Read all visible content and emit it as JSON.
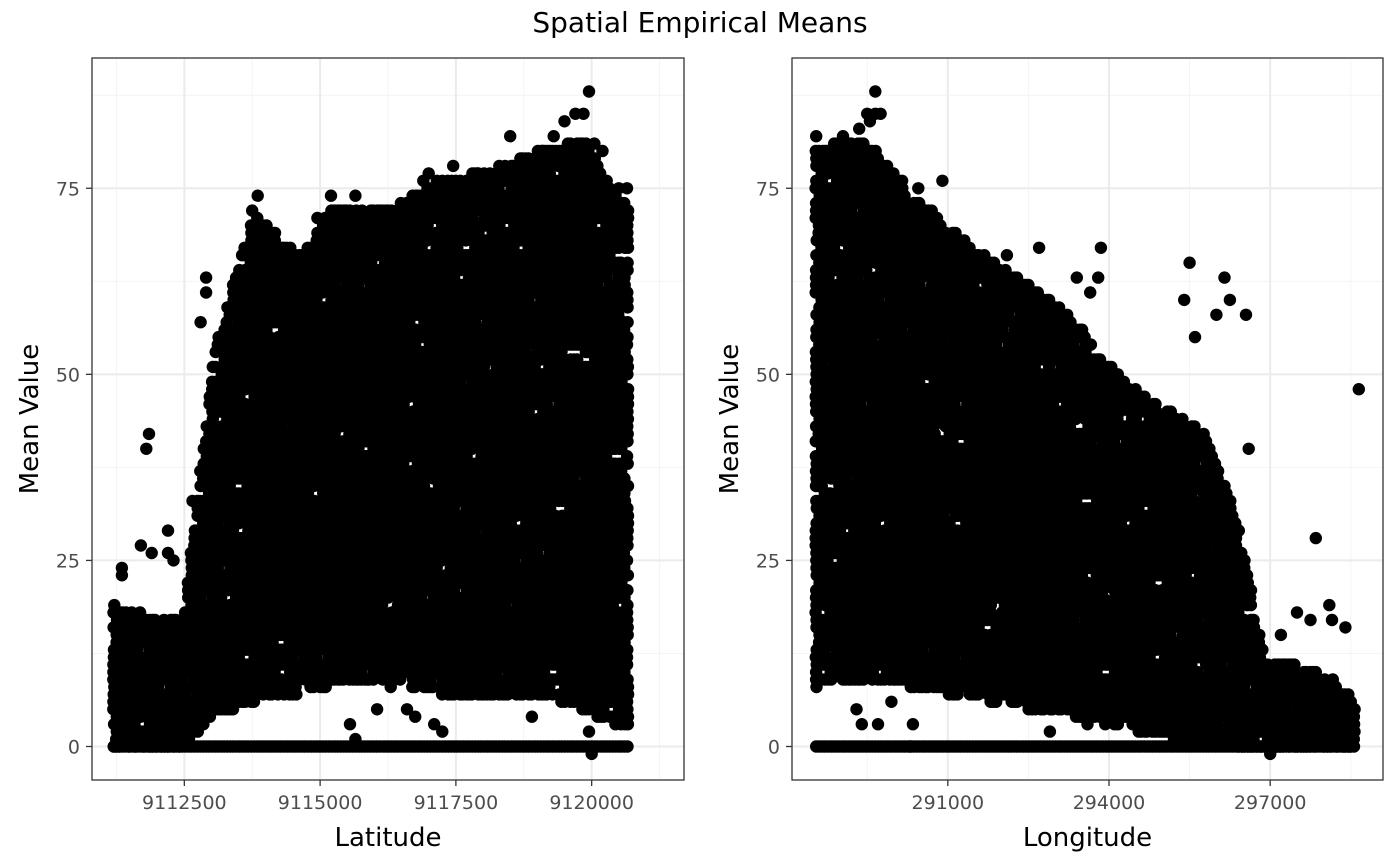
{
  "title": "Spatial Empirical Means",
  "chart_data": [
    {
      "type": "scatter",
      "xlabel": "Latitude",
      "ylabel": "Mean Value",
      "xlim": [
        9110800,
        9121700
      ],
      "ylim": [
        -4.5,
        92.5
      ],
      "xticks": [
        9112500,
        9115000,
        9117500,
        9120000
      ],
      "xtick_labels": [
        "9112500",
        "9115000",
        "9117500",
        "9120000"
      ],
      "yticks": [
        0,
        25,
        50,
        75
      ],
      "ytick_labels": [
        "0",
        "25",
        "50",
        "75"
      ],
      "grid": true,
      "point_color": "#000000",
      "x_step": 55,
      "envelope": [
        [
          9111200,
          19,
          0
        ],
        [
          9111800,
          18,
          0
        ],
        [
          9112500,
          17,
          0
        ],
        [
          9113000,
          52,
          4
        ],
        [
          9113800,
          72,
          6
        ],
        [
          9114600,
          66,
          7
        ],
        [
          9115200,
          72,
          8
        ],
        [
          9116200,
          72,
          9
        ],
        [
          9117200,
          76,
          7
        ],
        [
          9118300,
          78,
          7
        ],
        [
          9119000,
          80,
          7
        ],
        [
          9119800,
          82,
          5
        ],
        [
          9120700,
          72,
          2
        ]
      ],
      "points": [
        {
          "x": 9111350,
          "y": 24
        },
        {
          "x": 9111350,
          "y": 23
        },
        {
          "x": 9111700,
          "y": 27
        },
        {
          "x": 9111800,
          "y": 40
        },
        {
          "x": 9111850,
          "y": 42
        },
        {
          "x": 9111900,
          "y": 26
        },
        {
          "x": 9112200,
          "y": 29
        },
        {
          "x": 9112200,
          "y": 26
        },
        {
          "x": 9112300,
          "y": 25
        },
        {
          "x": 9112650,
          "y": 33
        },
        {
          "x": 9112800,
          "y": 57
        },
        {
          "x": 9112900,
          "y": 63
        },
        {
          "x": 9112900,
          "y": 61
        },
        {
          "x": 9113850,
          "y": 74
        },
        {
          "x": 9113750,
          "y": 72
        },
        {
          "x": 9114950,
          "y": 71
        },
        {
          "x": 9115200,
          "y": 74
        },
        {
          "x": 9115650,
          "y": 74
        },
        {
          "x": 9116900,
          "y": 76
        },
        {
          "x": 9117000,
          "y": 77
        },
        {
          "x": 9117150,
          "y": 76
        },
        {
          "x": 9117450,
          "y": 78
        },
        {
          "x": 9117500,
          "y": 76
        },
        {
          "x": 9117900,
          "y": 77
        },
        {
          "x": 9118300,
          "y": 78
        },
        {
          "x": 9118500,
          "y": 82
        },
        {
          "x": 9119100,
          "y": 80
        },
        {
          "x": 9119300,
          "y": 82
        },
        {
          "x": 9119500,
          "y": 84
        },
        {
          "x": 9119700,
          "y": 85
        },
        {
          "x": 9119850,
          "y": 85
        },
        {
          "x": 9119950,
          "y": 88
        },
        {
          "x": 9120050,
          "y": 81
        },
        {
          "x": 9120200,
          "y": 80
        },
        {
          "x": 9120500,
          "y": 75
        },
        {
          "x": 9120650,
          "y": 75
        },
        {
          "x": 9115550,
          "y": 3
        },
        {
          "x": 9115650,
          "y": 1
        },
        {
          "x": 9116050,
          "y": 5
        },
        {
          "x": 9116600,
          "y": 5
        },
        {
          "x": 9116750,
          "y": 4
        },
        {
          "x": 9117100,
          "y": 3
        },
        {
          "x": 9117250,
          "y": 2
        },
        {
          "x": 9118900,
          "y": 4
        },
        {
          "x": 9120000,
          "y": -1
        },
        {
          "x": 9119950,
          "y": 2
        },
        {
          "x": 9115900,
          "y": 9
        },
        {
          "x": 9116300,
          "y": 8
        }
      ]
    },
    {
      "type": "scatter",
      "xlabel": "Longitude",
      "ylabel": "Mean Value",
      "xlim": [
        288100,
        299100
      ],
      "ylim": [
        -4.5,
        92.5
      ],
      "xticks": [
        291000,
        294000,
        297000
      ],
      "xtick_labels": [
        "291000",
        "294000",
        "297000"
      ],
      "yticks": [
        0,
        25,
        50,
        75
      ],
      "ytick_labels": [
        "0",
        "25",
        "50",
        "75"
      ],
      "grid": true,
      "point_color": "#000000",
      "x_step": 55,
      "envelope": [
        [
          288550,
          80,
          8
        ],
        [
          289200,
          82,
          9
        ],
        [
          289700,
          80,
          9
        ],
        [
          290300,
          74,
          8
        ],
        [
          291000,
          70,
          7
        ],
        [
          291700,
          66,
          6
        ],
        [
          292500,
          62,
          5
        ],
        [
          293300,
          58,
          4
        ],
        [
          293900,
          52,
          3
        ],
        [
          294500,
          48,
          2
        ],
        [
          295200,
          45,
          1
        ],
        [
          295800,
          42,
          1
        ],
        [
          296400,
          30,
          0
        ],
        [
          296900,
          12,
          0
        ],
        [
          297500,
          11,
          0
        ],
        [
          298200,
          9,
          0
        ],
        [
          298600,
          6,
          0
        ]
      ],
      "points": [
        {
          "x": 288550,
          "y": 82
        },
        {
          "x": 288800,
          "y": 80
        },
        {
          "x": 289050,
          "y": 82
        },
        {
          "x": 289350,
          "y": 83
        },
        {
          "x": 289500,
          "y": 85
        },
        {
          "x": 289550,
          "y": 84
        },
        {
          "x": 289650,
          "y": 85
        },
        {
          "x": 289750,
          "y": 85
        },
        {
          "x": 289650,
          "y": 88
        },
        {
          "x": 290150,
          "y": 76
        },
        {
          "x": 290450,
          "y": 75
        },
        {
          "x": 290900,
          "y": 76
        },
        {
          "x": 290700,
          "y": 72
        },
        {
          "x": 291400,
          "y": 66
        },
        {
          "x": 292100,
          "y": 66
        },
        {
          "x": 292500,
          "y": 62
        },
        {
          "x": 292700,
          "y": 67
        },
        {
          "x": 293400,
          "y": 63
        },
        {
          "x": 293800,
          "y": 63
        },
        {
          "x": 293850,
          "y": 67
        },
        {
          "x": 293650,
          "y": 61
        },
        {
          "x": 295500,
          "y": 65
        },
        {
          "x": 295400,
          "y": 60
        },
        {
          "x": 295600,
          "y": 55
        },
        {
          "x": 296150,
          "y": 63
        },
        {
          "x": 296000,
          "y": 58
        },
        {
          "x": 296250,
          "y": 60
        },
        {
          "x": 296550,
          "y": 58
        },
        {
          "x": 296600,
          "y": 40
        },
        {
          "x": 297200,
          "y": 15
        },
        {
          "x": 297500,
          "y": 18
        },
        {
          "x": 297750,
          "y": 17
        },
        {
          "x": 298100,
          "y": 19
        },
        {
          "x": 298150,
          "y": 17
        },
        {
          "x": 298400,
          "y": 16
        },
        {
          "x": 297850,
          "y": 28
        },
        {
          "x": 298650,
          "y": 48
        },
        {
          "x": 289300,
          "y": 5
        },
        {
          "x": 289400,
          "y": 3
        },
        {
          "x": 289700,
          "y": 3
        },
        {
          "x": 289950,
          "y": 6
        },
        {
          "x": 290350,
          "y": 3
        },
        {
          "x": 290300,
          "y": 0
        },
        {
          "x": 289200,
          "y": 12
        },
        {
          "x": 297000,
          "y": -1
        },
        {
          "x": 293600,
          "y": 3
        },
        {
          "x": 292900,
          "y": 2
        }
      ]
    }
  ]
}
